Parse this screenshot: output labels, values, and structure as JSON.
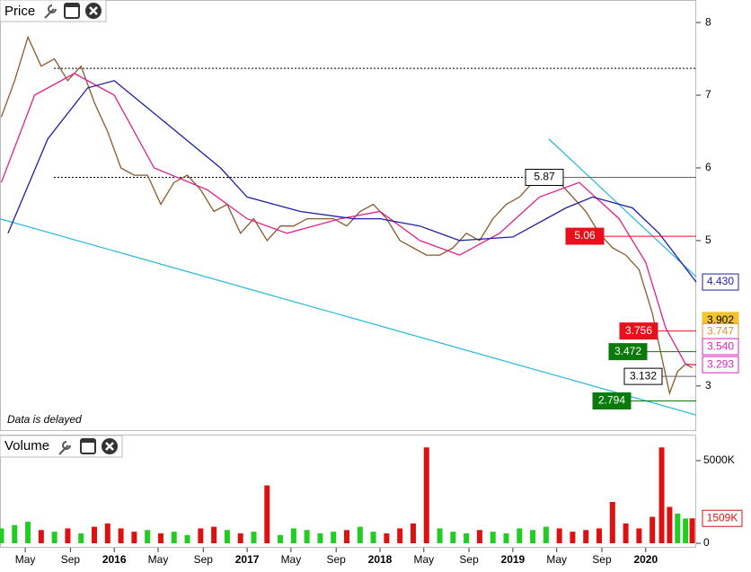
{
  "chart_data": [
    {
      "type": "line",
      "title": "Price",
      "note": "Data is delayed",
      "xlim": [
        2015.14,
        2020.38
      ],
      "ylim": [
        2.38,
        8.31
      ],
      "yticks": [
        3,
        5,
        6,
        7,
        8
      ],
      "xticks": [
        {
          "value": 2015.33,
          "label": "May"
        },
        {
          "value": 2015.67,
          "label": "Sep"
        },
        2016,
        {
          "value": 2016.33,
          "label": "May"
        },
        {
          "value": 2016.67,
          "label": "Sep"
        },
        2017,
        {
          "value": 2017.33,
          "label": "May"
        },
        {
          "value": 2017.67,
          "label": "Sep"
        },
        2018,
        {
          "value": 2018.33,
          "label": "May"
        },
        {
          "value": 2018.67,
          "label": "Sep"
        },
        2019,
        {
          "value": 2019.33,
          "label": "May"
        },
        {
          "value": 2019.67,
          "label": "Sep"
        },
        2020
      ],
      "series": [
        {
          "color": "#8b5a2b",
          "x": [
            2015.15,
            2015.25,
            2015.35,
            2015.45,
            2015.55,
            2015.65,
            2015.75,
            2015.85,
            2015.95,
            2016.05,
            2016.15,
            2016.25,
            2016.35,
            2016.45,
            2016.55,
            2016.65,
            2016.75,
            2016.85,
            2016.95,
            2017.05,
            2017.15,
            2017.25,
            2017.35,
            2017.45,
            2017.55,
            2017.65,
            2017.75,
            2017.85,
            2017.95,
            2018.05,
            2018.15,
            2018.25,
            2018.35,
            2018.45,
            2018.55,
            2018.65,
            2018.75,
            2018.85,
            2018.95,
            2019.05,
            2019.15,
            2019.25,
            2019.35,
            2019.45,
            2019.55,
            2019.65,
            2019.75,
            2019.85,
            2019.95,
            2020.05,
            2020.12,
            2020.18,
            2020.24,
            2020.3,
            2020.35
          ],
          "values": [
            6.7,
            7.2,
            7.8,
            7.4,
            7.5,
            7.2,
            7.4,
            6.9,
            6.5,
            6.0,
            5.9,
            5.9,
            5.5,
            5.8,
            5.9,
            5.7,
            5.4,
            5.5,
            5.1,
            5.3,
            5.0,
            5.2,
            5.2,
            5.3,
            5.3,
            5.3,
            5.2,
            5.4,
            5.5,
            5.3,
            5.0,
            4.9,
            4.8,
            4.8,
            4.9,
            5.1,
            5.0,
            5.3,
            5.5,
            5.6,
            5.8,
            5.9,
            5.8,
            5.6,
            5.4,
            5.1,
            4.9,
            4.8,
            4.6,
            4.0,
            3.4,
            2.9,
            3.2,
            3.3,
            3.25
          ]
        },
        {
          "color": "#e0208c",
          "x": [
            2015.15,
            2015.4,
            2015.7,
            2016.0,
            2016.3,
            2016.7,
            2017.0,
            2017.3,
            2017.7,
            2018.0,
            2018.3,
            2018.6,
            2018.9,
            2019.2,
            2019.5,
            2019.8,
            2020.0,
            2020.15,
            2020.3,
            2020.38
          ],
          "values": [
            5.8,
            7.0,
            7.3,
            7.0,
            6.0,
            5.7,
            5.3,
            5.1,
            5.3,
            5.4,
            5.0,
            4.8,
            5.1,
            5.6,
            5.8,
            5.3,
            4.7,
            3.8,
            3.3,
            3.29
          ]
        },
        {
          "color": "#1f1fa0",
          "x": [
            2015.2,
            2015.5,
            2015.8,
            2016.0,
            2016.4,
            2016.8,
            2017.0,
            2017.4,
            2017.8,
            2018.0,
            2018.3,
            2018.6,
            2019.0,
            2019.4,
            2019.6,
            2019.9,
            2020.1,
            2020.38
          ],
          "values": [
            5.1,
            6.4,
            7.1,
            7.2,
            6.6,
            6.0,
            5.6,
            5.4,
            5.3,
            5.3,
            5.2,
            5.0,
            5.05,
            5.45,
            5.6,
            5.45,
            5.1,
            4.43
          ]
        }
      ],
      "trendlines": [
        {
          "color": "#33bbdd",
          "x": [
            2015.14,
            2020.38
          ],
          "y": [
            5.3,
            2.6
          ]
        },
        {
          "color": "#33bbdd",
          "x": [
            2019.27,
            2020.38
          ],
          "y": [
            6.4,
            4.5
          ]
        }
      ],
      "levels": [
        7.37,
        5.87
      ],
      "annotations": [
        {
          "value": 5.87,
          "label": "5.87",
          "color": "#ffffff"
        },
        {
          "value": 5.06,
          "label": "5.06",
          "color": "#e8101c"
        },
        {
          "value": 3.756,
          "label": "3.756",
          "color": "#e8101c"
        },
        {
          "value": 3.472,
          "label": "3.472",
          "color": "#0a7a0a"
        },
        {
          "value": 3.132,
          "label": "3.132",
          "color": "#ffffff"
        },
        {
          "value": 2.794,
          "label": "2.794",
          "color": "#0a7a0a"
        },
        {
          "value": 4.43,
          "label": "4.430",
          "color": "#1f1fa0"
        },
        {
          "value": 3.902,
          "label": "3.902",
          "color": "#f4c430"
        },
        {
          "value": 3.747,
          "label": "3.747",
          "color": "#e09030"
        },
        {
          "value": 3.54,
          "label": "3.540",
          "color": "#e020c0"
        },
        {
          "value": 3.293,
          "label": "3.293",
          "color": "#e020c0"
        }
      ]
    },
    {
      "type": "bar",
      "title": "Volume",
      "xlim": [
        2015.14,
        2020.38
      ],
      "ylim": [
        0,
        6520
      ],
      "yticks": [
        0,
        {
          "value": 5000,
          "label": "5000K"
        }
      ],
      "up_color": "#22cc22",
      "down_color": "#dd1111",
      "x": [
        2015.15,
        2015.25,
        2015.35,
        2015.45,
        2015.55,
        2015.65,
        2015.75,
        2015.85,
        2015.95,
        2016.05,
        2016.15,
        2016.25,
        2016.35,
        2016.45,
        2016.55,
        2016.65,
        2016.75,
        2016.85,
        2016.95,
        2017.05,
        2017.15,
        2017.25,
        2017.35,
        2017.45,
        2017.55,
        2017.65,
        2017.75,
        2017.85,
        2017.95,
        2018.05,
        2018.15,
        2018.25,
        2018.35,
        2018.45,
        2018.55,
        2018.65,
        2018.75,
        2018.85,
        2018.95,
        2019.05,
        2019.15,
        2019.25,
        2019.35,
        2019.45,
        2019.55,
        2019.65,
        2019.75,
        2019.85,
        2019.95,
        2020.05,
        2020.12,
        2020.18,
        2020.24,
        2020.3,
        2020.35
      ],
      "values": [
        900,
        1100,
        1300,
        800,
        700,
        900,
        600,
        1000,
        1200,
        900,
        700,
        800,
        600,
        700,
        500,
        900,
        1000,
        800,
        600,
        700,
        3500,
        500,
        900,
        800,
        600,
        700,
        800,
        1000,
        700,
        600,
        900,
        1200,
        5800,
        900,
        700,
        600,
        800,
        700,
        600,
        900,
        800,
        1000,
        900,
        700,
        800,
        900,
        2500,
        1200,
        900,
        1600,
        5800,
        2200,
        1800,
        1500,
        1509
      ],
      "last": {
        "value": 1509,
        "label": "1509K"
      }
    }
  ]
}
